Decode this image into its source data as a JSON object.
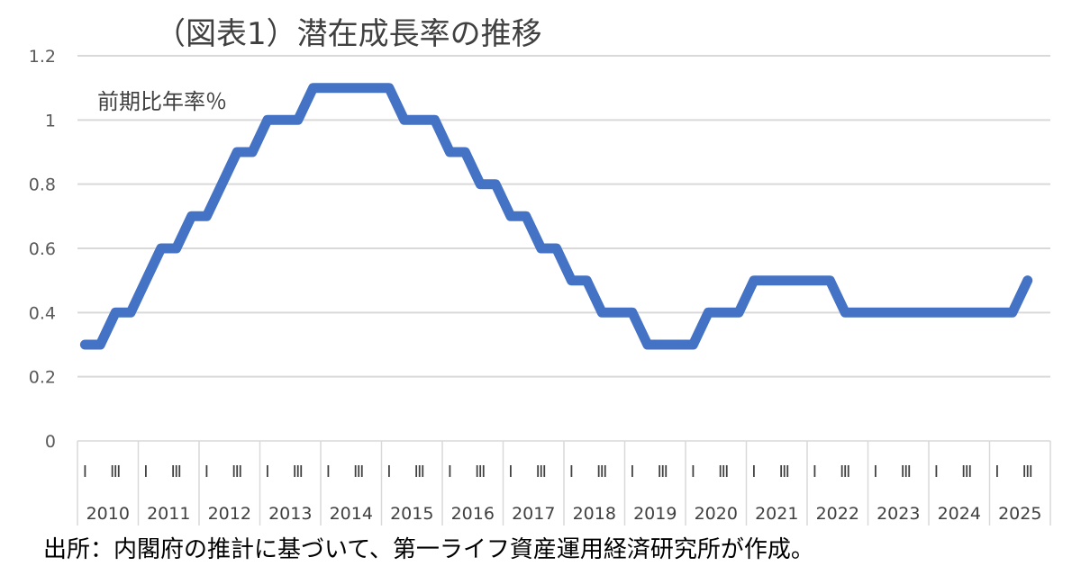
{
  "chart_data": {
    "type": "line",
    "title": "（図表1）潜在成長率の推移",
    "ylabel": "前期比年率％",
    "source_note": "出所：内閣府の推計に基づいて、第一ライフ資産運用経済研究所が作成。",
    "ylim": [
      0,
      1.2
    ],
    "yticks": [
      "0",
      "0.2",
      "0.4",
      "0.6",
      "0.8",
      "1",
      "1.2"
    ],
    "grid": true,
    "legend": "none",
    "line_color": "#4472C4",
    "years": [
      "2010",
      "2011",
      "2012",
      "2013",
      "2014",
      "2015",
      "2016",
      "2017",
      "2018",
      "2019",
      "2020",
      "2021",
      "2022",
      "2023",
      "2024",
      "2025"
    ],
    "quarter_tick_labels": [
      "Ⅰ",
      "Ⅲ"
    ],
    "x": [
      "2010Q1",
      "2010Q2",
      "2010Q3",
      "2010Q4",
      "2011Q1",
      "2011Q2",
      "2011Q3",
      "2011Q4",
      "2012Q1",
      "2012Q2",
      "2012Q3",
      "2012Q4",
      "2013Q1",
      "2013Q2",
      "2013Q3",
      "2013Q4",
      "2014Q1",
      "2014Q2",
      "2014Q3",
      "2014Q4",
      "2015Q1",
      "2015Q2",
      "2015Q3",
      "2015Q4",
      "2016Q1",
      "2016Q2",
      "2016Q3",
      "2016Q4",
      "2017Q1",
      "2017Q2",
      "2017Q3",
      "2017Q4",
      "2018Q1",
      "2018Q2",
      "2018Q3",
      "2018Q4",
      "2019Q1",
      "2019Q2",
      "2019Q3",
      "2019Q4",
      "2020Q1",
      "2020Q2",
      "2020Q3",
      "2020Q4",
      "2021Q1",
      "2021Q2",
      "2021Q3",
      "2021Q4",
      "2022Q1",
      "2022Q2",
      "2022Q3",
      "2022Q4",
      "2023Q1",
      "2023Q2",
      "2023Q3",
      "2023Q4",
      "2024Q1",
      "2024Q2",
      "2024Q3",
      "2024Q4",
      "2025Q1",
      "2025Q2",
      "2025Q3"
    ],
    "values": [
      0.3,
      0.3,
      0.4,
      0.4,
      0.5,
      0.6,
      0.6,
      0.7,
      0.7,
      0.8,
      0.9,
      0.9,
      1.0,
      1.0,
      1.0,
      1.1,
      1.1,
      1.1,
      1.1,
      1.1,
      1.1,
      1.0,
      1.0,
      1.0,
      0.9,
      0.9,
      0.8,
      0.8,
      0.7,
      0.7,
      0.6,
      0.6,
      0.5,
      0.5,
      0.4,
      0.4,
      0.4,
      0.3,
      0.3,
      0.3,
      0.3,
      0.4,
      0.4,
      0.4,
      0.5,
      0.5,
      0.5,
      0.5,
      0.5,
      0.5,
      0.4,
      0.4,
      0.4,
      0.4,
      0.4,
      0.4,
      0.4,
      0.4,
      0.4,
      0.4,
      0.4,
      0.4,
      0.5
    ]
  }
}
